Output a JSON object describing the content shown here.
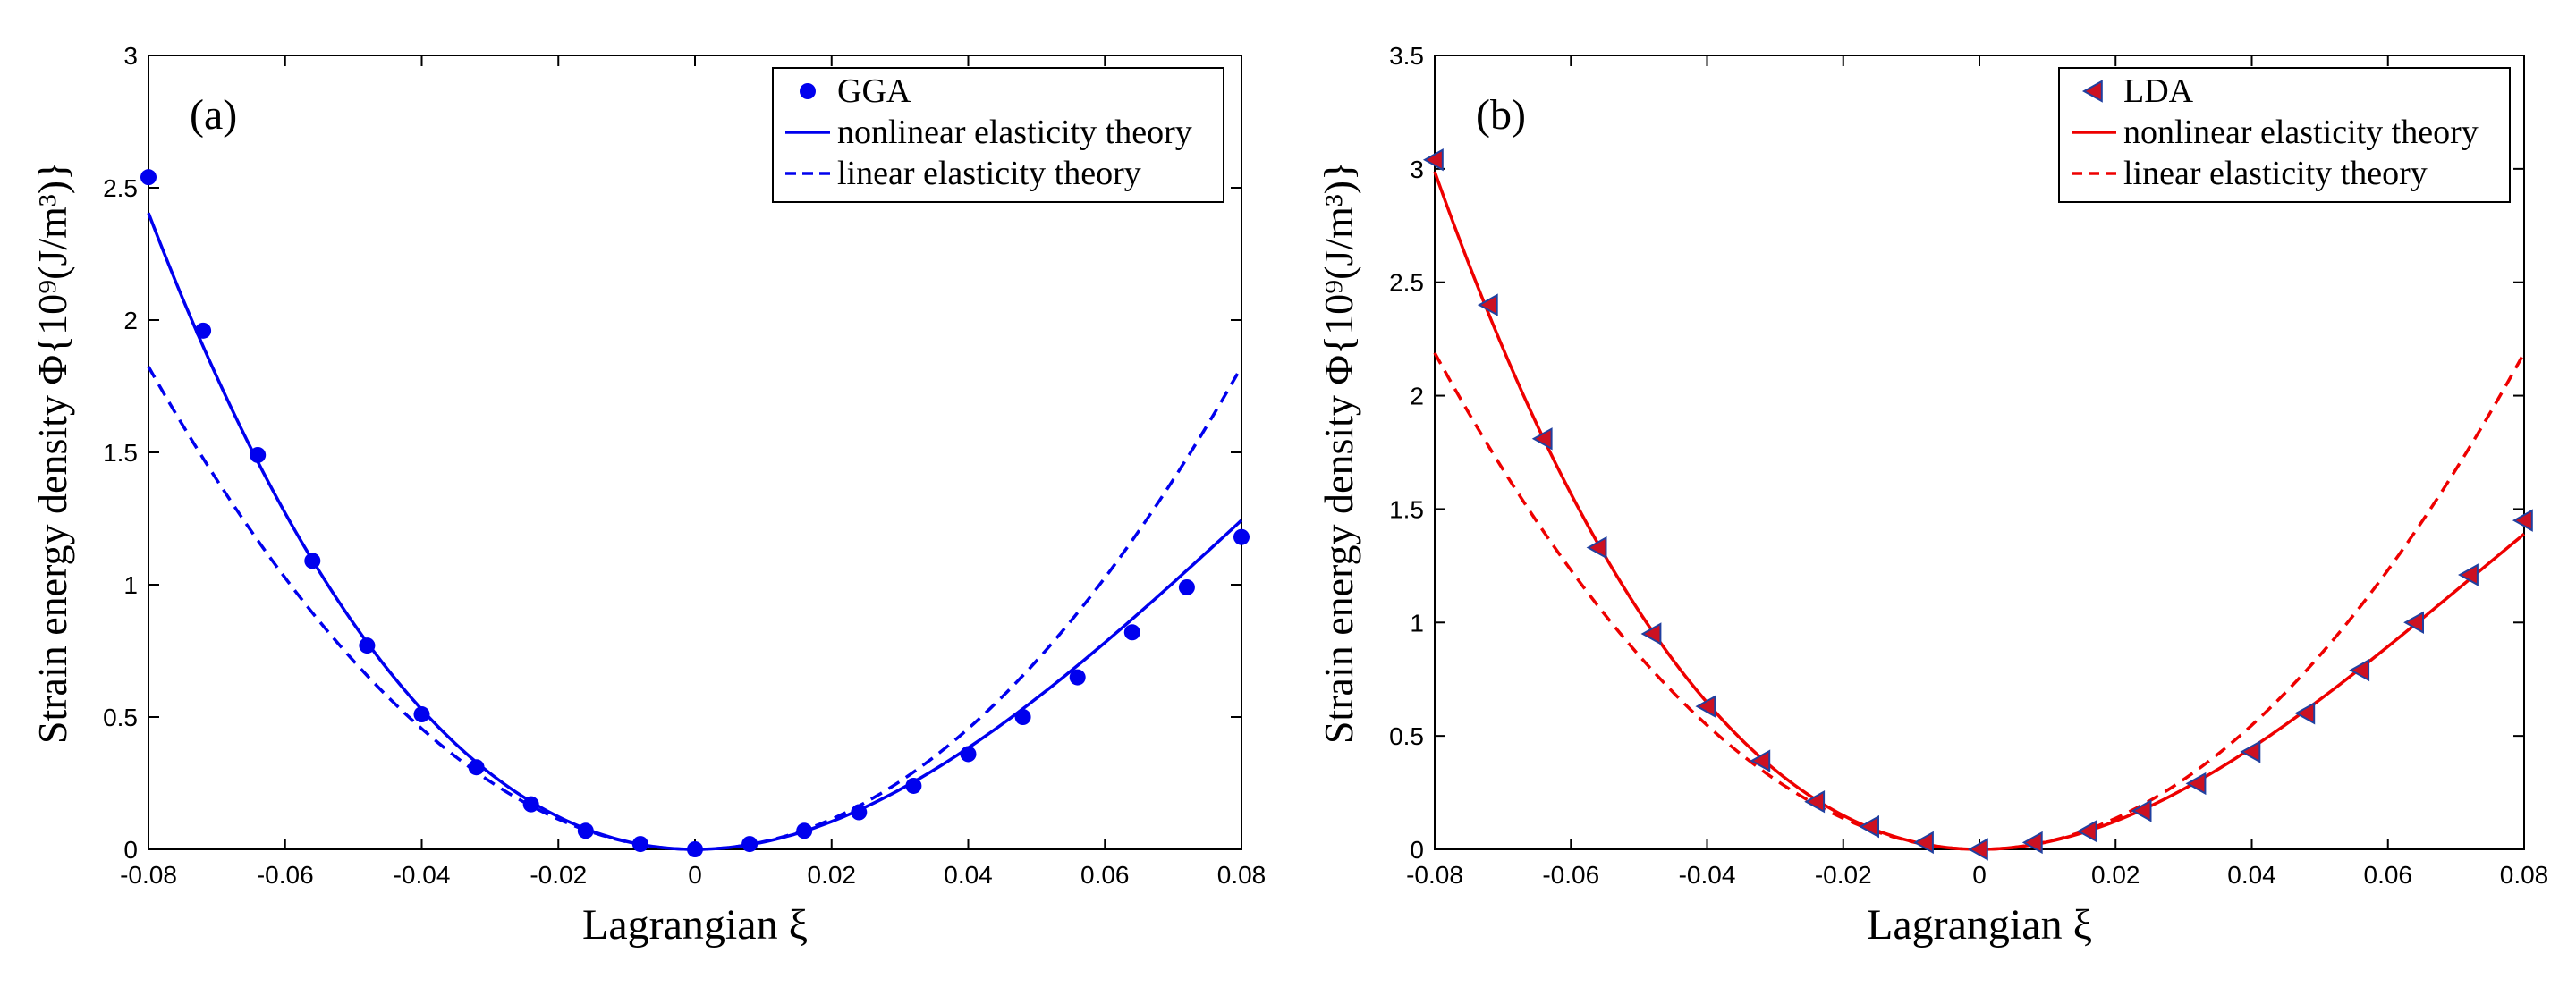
{
  "chart_data": [
    {
      "type": "line",
      "panel_label": "(a)",
      "xlabel": "Lagrangian ξ",
      "ylabel": "Strain energy density Φ{10⁹(J/m³)}",
      "xlim": [
        -0.08,
        0.08
      ],
      "ylim": [
        0,
        3
      ],
      "xticks": [
        -0.08,
        -0.06,
        -0.04,
        -0.02,
        0,
        0.02,
        0.04,
        0.06,
        0.08
      ],
      "xtick_labels": [
        "-0.08",
        "-0.06",
        "-0.04",
        "-0.02",
        "0",
        "0.02",
        "0.04",
        "0.06",
        "0.08"
      ],
      "yticks": [
        0,
        0.5,
        1,
        1.5,
        2,
        2.5,
        3
      ],
      "ytick_labels": [
        "0",
        "0.5",
        "1",
        "1.5",
        "2",
        "2.5",
        "3"
      ],
      "color": "#0000ee",
      "legend": [
        "GGA",
        "nonlinear elasticity theory",
        "linear elasticity theory"
      ],
      "legend_position": "top-right",
      "points": {
        "name": "GGA",
        "marker": "circle",
        "x": [
          -0.08,
          -0.072,
          -0.064,
          -0.056,
          -0.048,
          -0.04,
          -0.032,
          -0.024,
          -0.016,
          -0.008,
          0,
          0.008,
          0.016,
          0.024,
          0.032,
          0.04,
          0.048,
          0.056,
          0.064,
          0.072,
          0.08
        ],
        "y": [
          2.54,
          1.96,
          1.49,
          1.09,
          0.77,
          0.51,
          0.31,
          0.17,
          0.07,
          0.02,
          0.0,
          0.02,
          0.07,
          0.14,
          0.24,
          0.36,
          0.5,
          0.65,
          0.82,
          0.99,
          1.18
        ]
      },
      "nonlinear": {
        "name": "nonlinear elasticity theory",
        "coeffs": [
          0,
          0,
          285,
          -1134
        ]
      },
      "linear": {
        "name": "linear elasticity theory",
        "coeffs": [
          0,
          0,
          285,
          0
        ]
      }
    },
    {
      "type": "line",
      "panel_label": "(b)",
      "xlabel": "Lagrangian ξ",
      "ylabel": "Strain energy density Φ{10⁹(J/m³)}",
      "xlim": [
        -0.08,
        0.08
      ],
      "ylim": [
        0,
        3.5
      ],
      "xticks": [
        -0.08,
        -0.06,
        -0.04,
        -0.02,
        0,
        0.02,
        0.04,
        0.06,
        0.08
      ],
      "xtick_labels": [
        "-0.08",
        "-0.06",
        "-0.04",
        "-0.02",
        "0",
        "0.02",
        "0.04",
        "0.06",
        "0.08"
      ],
      "yticks": [
        0,
        0.5,
        1,
        1.5,
        2,
        2.5,
        3,
        3.5
      ],
      "ytick_labels": [
        "0",
        "0.5",
        "1",
        "1.5",
        "2",
        "2.5",
        "3",
        "3.5"
      ],
      "color": "#ee0000",
      "marker_fill": "#cc1122",
      "marker_edge": "#2040a0",
      "legend": [
        "LDA",
        "nonlinear elasticity theory",
        "linear elasticity theory"
      ],
      "legend_position": "top-right",
      "points": {
        "name": "LDA",
        "marker": "triangle-left",
        "x": [
          -0.08,
          -0.072,
          -0.064,
          -0.056,
          -0.048,
          -0.04,
          -0.032,
          -0.024,
          -0.016,
          -0.008,
          0,
          0.008,
          0.016,
          0.024,
          0.032,
          0.04,
          0.048,
          0.056,
          0.064,
          0.072,
          0.08
        ],
        "y": [
          3.04,
          2.4,
          1.81,
          1.33,
          0.95,
          0.63,
          0.39,
          0.21,
          0.1,
          0.03,
          0.0,
          0.03,
          0.08,
          0.17,
          0.29,
          0.43,
          0.6,
          0.79,
          1.0,
          1.21,
          1.45
        ]
      },
      "nonlinear": {
        "name": "nonlinear elasticity theory",
        "coeffs": [
          0,
          0,
          342,
          -1560
        ]
      },
      "linear": {
        "name": "linear elasticity theory",
        "coeffs": [
          0,
          0,
          342,
          0
        ]
      }
    }
  ]
}
